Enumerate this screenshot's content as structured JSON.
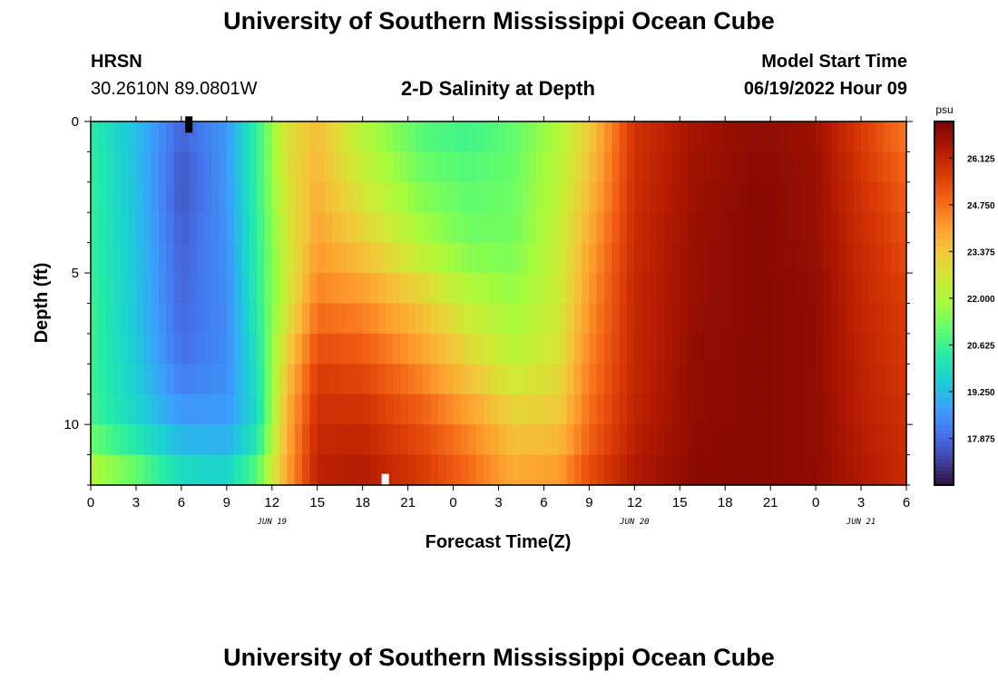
{
  "header": {
    "title": "University of Southern Mississippi Ocean Cube",
    "station": "HRSN",
    "coords": "30.2610N  89.0801W",
    "plot_title": "2-D Salinity at Depth",
    "start_label": "Model Start Time",
    "start_value": "06/19/2022 Hour 09"
  },
  "footer": {
    "title": "University of Southern Mississippi Ocean Cube"
  },
  "chart_data": {
    "type": "heatmap",
    "xlabel": "Forecast Time(Z)",
    "ylabel": "Depth (ft)",
    "x_tick_labels": [
      "0",
      "3",
      "6",
      "9",
      "12",
      "15",
      "18",
      "21",
      "0",
      "3",
      "6",
      "9",
      "12",
      "15",
      "18",
      "21",
      "0",
      "3",
      "6"
    ],
    "x_date_labels": [
      {
        "label": "JUN 19",
        "hour": 12
      },
      {
        "label": "JUN 20",
        "hour": 36
      },
      {
        "label": "JUN 21",
        "hour": 51
      }
    ],
    "xlim_hours": [
      0,
      54
    ],
    "y_tick_labels": [
      "0",
      "5",
      "10"
    ],
    "ylim_ft": [
      0,
      12
    ],
    "colorbar": {
      "unit": "psu",
      "min": 16.5,
      "max": 27.2,
      "ticks": [
        "26.125",
        "24.750",
        "23.375",
        "22.000",
        "20.625",
        "19.250",
        "17.875"
      ],
      "colors": [
        "#30123b",
        "#4145ab",
        "#4675ed",
        "#39a2fc",
        "#1bcfd4",
        "#24eca6",
        "#61fc6c",
        "#a4fc3b",
        "#d1e834",
        "#f3c63a",
        "#fe9b2d",
        "#f36315",
        "#d93806",
        "#b11901",
        "#7a0402"
      ]
    },
    "salinity_hours": [
      0,
      3,
      6,
      9,
      11,
      13,
      15,
      18,
      22,
      25,
      28,
      31,
      33,
      36,
      40,
      44,
      48,
      51,
      54
    ],
    "salinity_depths_ft": [
      0,
      2,
      4,
      6,
      8,
      10,
      12
    ],
    "salinity_psu": [
      [
        20.3,
        19.3,
        17.8,
        18.6,
        20.5,
        22.8,
        23.5,
        22.0,
        20.8,
        20.6,
        21.0,
        22.0,
        23.2,
        25.8,
        26.6,
        26.9,
        26.7,
        25.6,
        24.5
      ],
      [
        20.5,
        19.3,
        17.5,
        18.6,
        20.5,
        22.8,
        23.7,
        22.5,
        21.3,
        21.0,
        21.2,
        22.2,
        23.5,
        25.9,
        26.7,
        27.0,
        26.8,
        25.8,
        25.0
      ],
      [
        20.5,
        19.4,
        17.7,
        18.5,
        20.4,
        22.5,
        24.0,
        23.3,
        22.0,
        21.3,
        21.3,
        22.4,
        23.9,
        26.0,
        26.8,
        27.0,
        26.8,
        26.0,
        25.3
      ],
      [
        20.6,
        19.4,
        17.8,
        18.4,
        20.3,
        22.5,
        24.6,
        24.3,
        23.3,
        22.3,
        21.8,
        22.5,
        24.2,
        26.1,
        26.8,
        27.0,
        26.9,
        26.1,
        25.6
      ],
      [
        20.6,
        19.5,
        18.0,
        18.4,
        20.0,
        23.3,
        25.5,
        25.3,
        24.2,
        23.2,
        22.3,
        22.8,
        24.5,
        26.1,
        26.9,
        27.0,
        26.9,
        26.2,
        25.7
      ],
      [
        20.7,
        19.8,
        18.8,
        18.7,
        19.8,
        23.8,
        26.0,
        26.0,
        25.2,
        24.3,
        23.3,
        23.4,
        24.8,
        26.2,
        26.9,
        27.0,
        26.9,
        26.3,
        25.9
      ],
      [
        22.5,
        21.5,
        20.2,
        20.0,
        21.3,
        24.0,
        26.3,
        26.5,
        25.8,
        25.0,
        24.0,
        24.3,
        25.4,
        26.5,
        27.0,
        27.0,
        26.9,
        26.5,
        26.0
      ]
    ],
    "minimum_marker": {
      "hour": 6.5,
      "depth_ft": 0.1,
      "color": "#000000"
    },
    "maximum_marker": {
      "hour": 19.5,
      "depth_ft": 11.9,
      "color": "#ffffff"
    }
  }
}
